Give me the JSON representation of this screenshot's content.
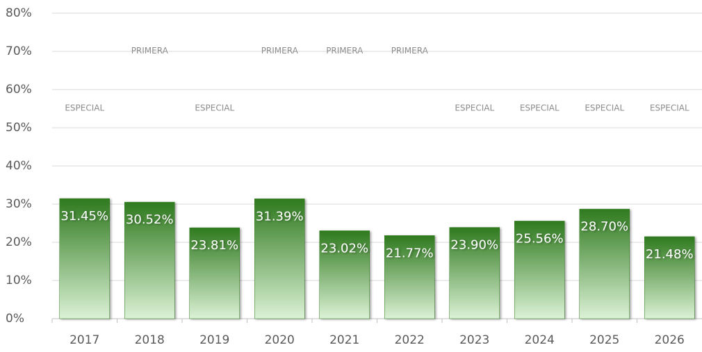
{
  "chart_data": {
    "type": "bar",
    "categories": [
      "2017",
      "2018",
      "2019",
      "2020",
      "2021",
      "2022",
      "2023",
      "2024",
      "2025",
      "2026"
    ],
    "series": [
      {
        "type": "bar",
        "color": "#2f7a1e",
        "values": [
          31.45,
          30.52,
          23.81,
          31.39,
          23.02,
          21.77,
          23.9,
          25.56,
          28.7,
          21.48
        ],
        "value_labels": [
          "31.45%",
          "30.52%",
          "23.81%",
          "31.39%",
          "23.02%",
          "21.77%",
          "23.90%",
          "25.56%",
          "28.70%",
          "21.48%"
        ]
      },
      {
        "type": "level",
        "color": "#ed7d31",
        "values": [
          50,
          65,
          50,
          65,
          65,
          65,
          50,
          50,
          50,
          50
        ],
        "labels": [
          "ESPECIAL",
          "PRIMERA",
          "ESPECIAL",
          "PRIMERA",
          "PRIMERA",
          "PRIMERA",
          "ESPECIAL",
          "ESPECIAL",
          "ESPECIAL",
          "ESPECIAL"
        ]
      }
    ],
    "ylim": [
      0,
      80
    ],
    "yticks": [
      {
        "value": 0,
        "label": "0%"
      },
      {
        "value": 10,
        "label": "10%"
      },
      {
        "value": 20,
        "label": "20%"
      },
      {
        "value": 30,
        "label": "30%"
      },
      {
        "value": 40,
        "label": "40%"
      },
      {
        "value": 50,
        "label": "50%"
      },
      {
        "value": 60,
        "label": "60%"
      },
      {
        "value": 70,
        "label": "70%"
      },
      {
        "value": 80,
        "label": "80%"
      }
    ],
    "grid": true
  }
}
